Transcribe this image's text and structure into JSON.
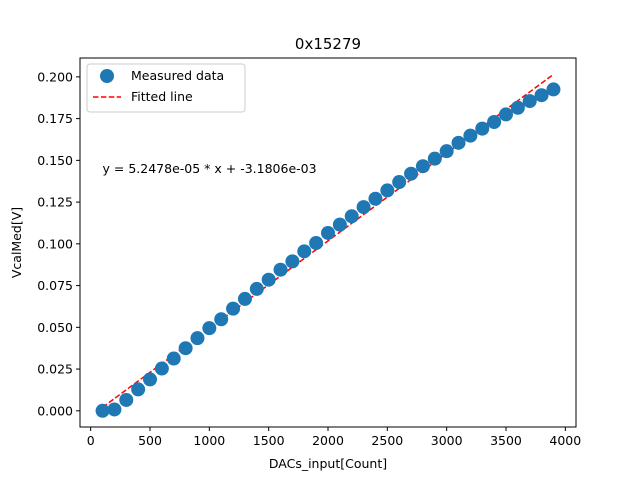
{
  "chart_data": {
    "type": "scatter",
    "title": "0x15279",
    "xlabel": "DACs_input[Count]",
    "ylabel": "VcalMed[V]",
    "xlim": [
      -90,
      4090
    ],
    "ylim": [
      -0.0097,
      0.2113
    ],
    "xticks": [
      0,
      500,
      1000,
      1500,
      2000,
      2500,
      3000,
      3500,
      4000
    ],
    "xtick_labels": [
      "0",
      "500",
      "1000",
      "1500",
      "2000",
      "2500",
      "3000",
      "3500",
      "4000"
    ],
    "yticks": [
      0.0,
      0.025,
      0.05,
      0.075,
      0.1,
      0.125,
      0.15,
      0.175,
      0.2
    ],
    "ytick_labels": [
      "0.000",
      "0.025",
      "0.050",
      "0.075",
      "0.100",
      "0.125",
      "0.150",
      "0.175",
      "0.200"
    ],
    "grid": false,
    "legend_position": "top-left",
    "series": [
      {
        "name": "Measured data",
        "kind": "scatter",
        "color": "#1f77b4",
        "x": [
          100,
          200,
          300,
          400,
          500,
          600,
          700,
          800,
          900,
          1000,
          1100,
          1200,
          1300,
          1400,
          1500,
          1600,
          1700,
          1800,
          1900,
          2000,
          2100,
          2200,
          2300,
          2400,
          2500,
          2600,
          2700,
          2800,
          2900,
          3000,
          3100,
          3200,
          3300,
          3400,
          3500,
          3600,
          3700,
          3800,
          3900
        ],
        "y": [
          0.0,
          0.0008,
          0.0065,
          0.0128,
          0.0188,
          0.0253,
          0.0313,
          0.0375,
          0.0435,
          0.0495,
          0.0548,
          0.0612,
          0.067,
          0.073,
          0.0785,
          0.0845,
          0.0895,
          0.0955,
          0.1005,
          0.1065,
          0.1115,
          0.1165,
          0.122,
          0.127,
          0.132,
          0.137,
          0.142,
          0.1465,
          0.151,
          0.1555,
          0.1605,
          0.1648,
          0.169,
          0.173,
          0.1775,
          0.1815,
          0.1855,
          0.189,
          0.1925
        ]
      },
      {
        "name": "Fitted line",
        "kind": "line",
        "style": "dashed",
        "color": "#ff0000",
        "slope": 5.2478e-05,
        "intercept": -0.0031806,
        "x": [
          100,
          3900
        ]
      }
    ],
    "annotations": [
      {
        "text": "y = 5.2478e-05 * x + -3.1806e-03",
        "x": 100,
        "y": 0.145
      }
    ]
  }
}
